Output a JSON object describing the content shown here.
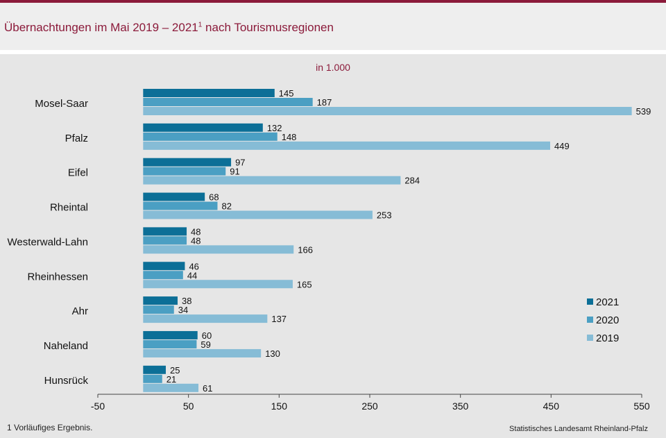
{
  "header": {
    "title": "Übernachtungen im Mai 2019 – 2021",
    "title_footnote_mark": "1",
    "title_suffix": " nach Tourismusregionen"
  },
  "unit_label": "in 1.000",
  "footnote": "1 Vorläufiges Ergebnis.",
  "source": "Statistisches Landesamt Rheinland-Pfalz",
  "colors": {
    "2021": "#0c6f97",
    "2020": "#4b9fc3",
    "2019": "#86bcd6",
    "accent": "#8b1a3a"
  },
  "chart_data": {
    "type": "bar",
    "orientation": "horizontal",
    "categories": [
      "Mosel-Saar",
      "Pfalz",
      "Eifel",
      "Rheintal",
      "Westerwald-Lahn",
      "Rheinhessen",
      "Ahr",
      "Naheland",
      "Hunsrück"
    ],
    "series": [
      {
        "name": "2021",
        "values": [
          145,
          132,
          97,
          68,
          48,
          46,
          38,
          60,
          25
        ]
      },
      {
        "name": "2020",
        "values": [
          187,
          148,
          91,
          82,
          48,
          44,
          34,
          59,
          21
        ]
      },
      {
        "name": "2019",
        "values": [
          539,
          449,
          284,
          253,
          166,
          165,
          137,
          130,
          61
        ]
      }
    ],
    "xlim": [
      -50,
      550
    ],
    "xticks": [
      -50,
      50,
      150,
      250,
      350,
      450,
      550
    ],
    "legend_position": "right",
    "grid": false
  }
}
